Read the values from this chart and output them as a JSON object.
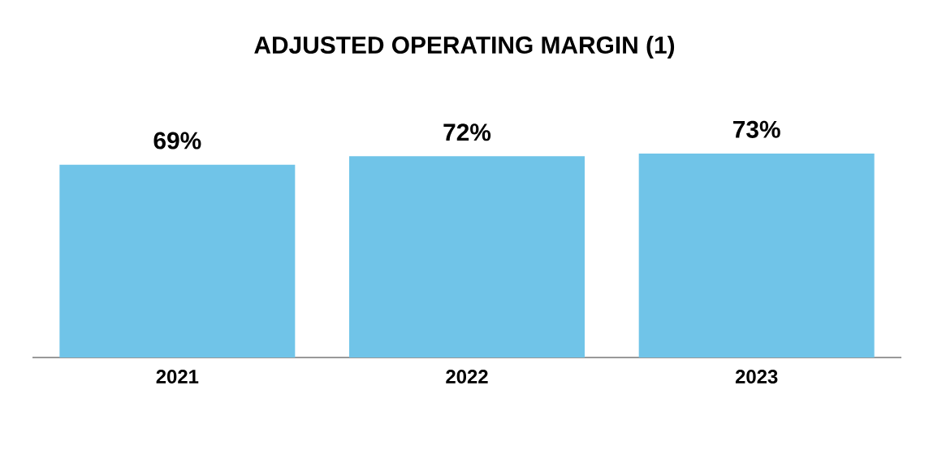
{
  "chart_data": {
    "type": "bar",
    "title": "ADJUSTED OPERATING MARGIN (1)",
    "categories": [
      "2021",
      "2022",
      "2023"
    ],
    "values": [
      69,
      72,
      73
    ],
    "value_labels": [
      "69%",
      "72%",
      "73%"
    ],
    "color": "#70c4e8"
  }
}
